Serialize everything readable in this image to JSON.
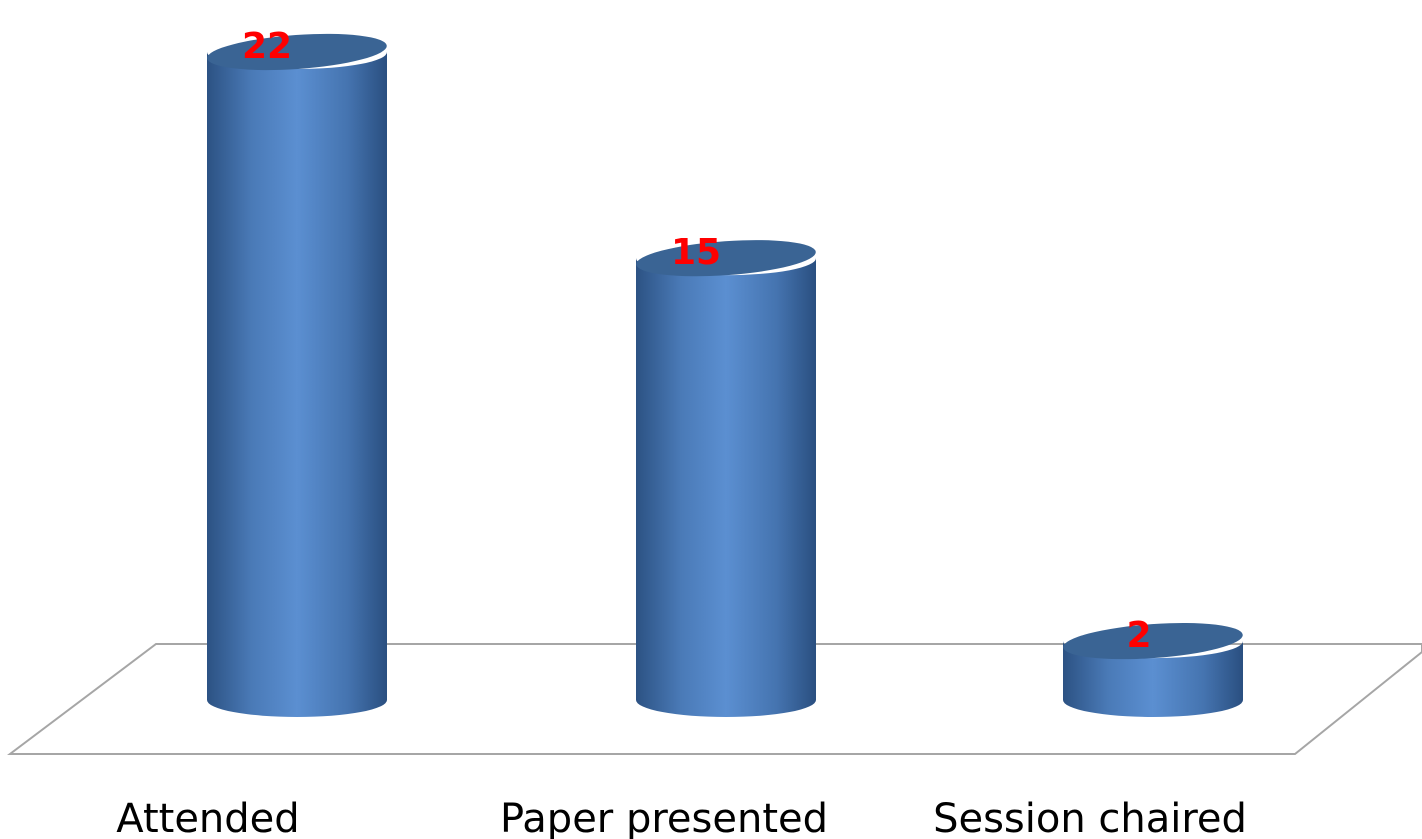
{
  "chart_data": {
    "type": "bar",
    "categories": [
      "Attended",
      "Paper presented",
      "Session chaired"
    ],
    "values": [
      22,
      15,
      2
    ],
    "data_labels": [
      "22",
      "15",
      "2"
    ],
    "title": "",
    "xlabel": "",
    "ylabel": "",
    "grid": false,
    "legend": "none",
    "bar_shape": "cylinder",
    "colors": {
      "bar": "#4f81bd",
      "bar_dark": "#2e5585",
      "bar_light": "#6d9ad6",
      "top": "#3a6494",
      "floor_line": "#a6a6a6",
      "data_label": "#ff0000",
      "category_label": "#000000"
    }
  }
}
